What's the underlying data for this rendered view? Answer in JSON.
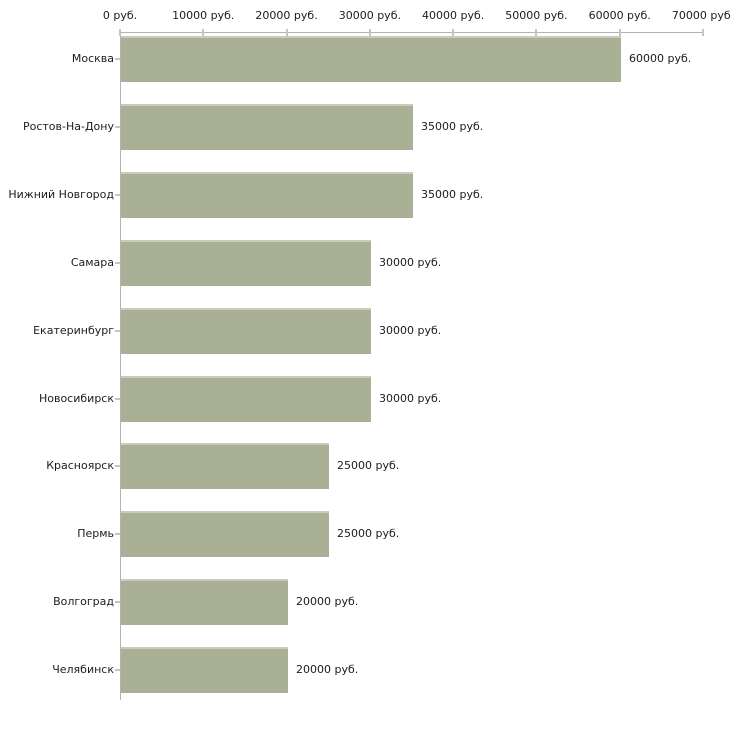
{
  "chart_data": {
    "type": "bar",
    "orientation": "horizontal",
    "title": "",
    "xlabel": "",
    "ylabel": "",
    "xlim": [
      0,
      70000
    ],
    "x_tick_step": 10000,
    "x_tick_labels": [
      "0 руб.",
      "10000 руб.",
      "20000 руб.",
      "30000 руб.",
      "40000 руб.",
      "50000 руб.",
      "60000 руб.",
      "70000 руб."
    ],
    "categories": [
      "Москва",
      "Ростов-На-Дону",
      "Нижний Новгород",
      "Самара",
      "Екатеринбург",
      "Новосибирск",
      "Красноярск",
      "Пермь",
      "Волгоград",
      "Челябинск"
    ],
    "values": [
      60000,
      35000,
      35000,
      30000,
      30000,
      30000,
      25000,
      25000,
      20000,
      20000
    ],
    "value_labels": [
      "60000 руб.",
      "35000 руб.",
      "35000 руб.",
      "30000 руб.",
      "30000 руб.",
      "30000 руб.",
      "25000 руб.",
      "25000 руб.",
      "20000 руб.",
      "20000 руб."
    ],
    "unit": "руб.",
    "grid": false,
    "legend": false,
    "colors": {
      "bar": "#aab096",
      "bar_highlight": "#c9ccba",
      "axis_line": "#b3b3b3",
      "tick": "#c6c9ac",
      "text": "#1c1c1c",
      "background": "#ffffff"
    }
  }
}
